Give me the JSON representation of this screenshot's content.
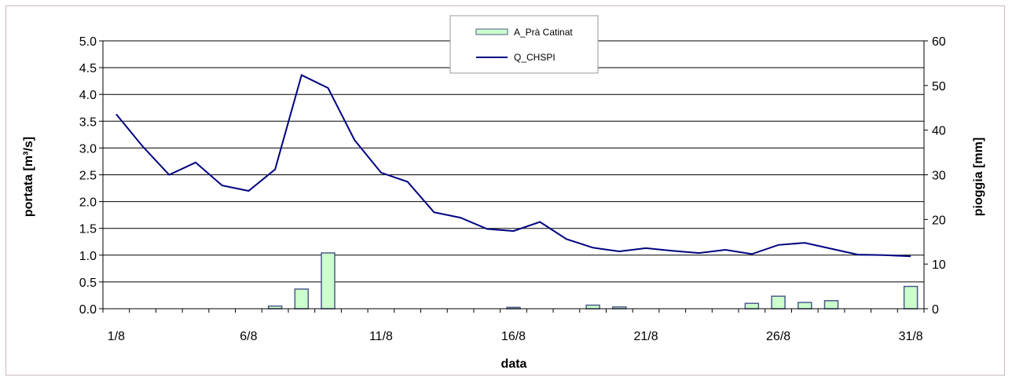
{
  "chart_data": {
    "type": "bar+line",
    "x": [
      "1/8",
      "2/8",
      "3/8",
      "4/8",
      "5/8",
      "6/8",
      "7/8",
      "8/8",
      "9/8",
      "10/8",
      "11/8",
      "12/8",
      "13/8",
      "14/8",
      "15/8",
      "16/8",
      "17/8",
      "18/8",
      "19/8",
      "20/8",
      "21/8",
      "22/8",
      "23/8",
      "24/8",
      "25/8",
      "26/8",
      "27/8",
      "28/8",
      "29/8",
      "30/8",
      "31/8"
    ],
    "xticks": [
      "1/8",
      "6/8",
      "11/8",
      "16/8",
      "21/8",
      "26/8",
      "31/8"
    ],
    "xlabel": "data",
    "ylabel_left": "portata [m³/s]",
    "ylabel_right": "pioggia [mm]",
    "ylim_left": [
      0,
      5.0
    ],
    "ylim_right": [
      0,
      60
    ],
    "yticks_left": [
      "0.0",
      "0.5",
      "1.0",
      "1.5",
      "2.0",
      "2.5",
      "3.0",
      "3.5",
      "4.0",
      "4.5",
      "5.0"
    ],
    "yticks_right": [
      "0",
      "10",
      "20",
      "30",
      "40",
      "50",
      "60"
    ],
    "grid": "horizontal",
    "legend_position": "top-center",
    "series": [
      {
        "name": "A_Prà Catinat",
        "kind": "bar",
        "axis": "right",
        "color": "#ccffcc",
        "edge_color": "#4d5a8c",
        "values": [
          0,
          0,
          0,
          0,
          0,
          0,
          0.6,
          4.4,
          12.5,
          0,
          0,
          0,
          0,
          0,
          0,
          0.3,
          0,
          0,
          0.8,
          0.4,
          0,
          0,
          0,
          0,
          1.2,
          2.8,
          1.4,
          1.8,
          0,
          0,
          5.0
        ]
      },
      {
        "name": "Q_CHSPI",
        "kind": "line",
        "axis": "left",
        "color": "#000080",
        "values": [
          3.63,
          3.03,
          2.5,
          2.73,
          2.3,
          2.2,
          2.6,
          4.36,
          4.12,
          3.15,
          2.54,
          2.37,
          1.8,
          1.7,
          1.49,
          1.45,
          1.62,
          1.3,
          1.14,
          1.07,
          1.13,
          1.08,
          1.04,
          1.1,
          1.02,
          1.19,
          1.23,
          1.12,
          1.01,
          1.0,
          0.98
        ]
      }
    ]
  }
}
